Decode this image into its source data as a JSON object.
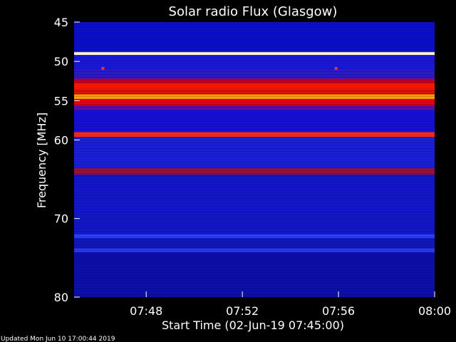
{
  "chart_data": {
    "type": "heatmap",
    "title": "Solar radio Flux (Glasgow)",
    "xlabel": "Start Time (02-Jun-19 07:45:00)",
    "ylabel": "Frequency [MHz]",
    "x_tick_labels": [
      "07:48",
      "07:52",
      "07:56",
      "08:00"
    ],
    "x_tick_minutes": [
      3,
      7,
      11,
      15
    ],
    "xlim_minutes": [
      0,
      15
    ],
    "y_ticks": [
      45,
      50,
      55,
      60,
      70,
      80
    ],
    "ylim": [
      45,
      80
    ],
    "bands": [
      {
        "f0": 45.0,
        "f1": 48.8,
        "color": "#0a10c8"
      },
      {
        "f0": 48.8,
        "f1": 49.2,
        "color": "#fff8d0"
      },
      {
        "f0": 49.2,
        "f1": 51.0,
        "color": "#1a18d8"
      },
      {
        "f0": 51.0,
        "f1": 52.2,
        "color": "#2a1ac8"
      },
      {
        "f0": 52.2,
        "f1": 52.8,
        "color": "#c80020"
      },
      {
        "f0": 52.8,
        "f1": 53.6,
        "color": "#ff1a00"
      },
      {
        "f0": 53.6,
        "f1": 54.2,
        "color": "#e01000"
      },
      {
        "f0": 54.2,
        "f1": 54.8,
        "color": "#ffa000"
      },
      {
        "f0": 54.8,
        "f1": 55.6,
        "color": "#e80010"
      },
      {
        "f0": 55.6,
        "f1": 56.2,
        "color": "#6010a0"
      },
      {
        "f0": 56.2,
        "f1": 59.0,
        "color": "#1410d8"
      },
      {
        "f0": 59.0,
        "f1": 59.6,
        "color": "#ff2a10"
      },
      {
        "f0": 59.6,
        "f1": 63.6,
        "color": "#1a20d8"
      },
      {
        "f0": 63.6,
        "f1": 64.4,
        "color": "#a0102e"
      },
      {
        "f0": 64.4,
        "f1": 72.0,
        "color": "#1218c8"
      },
      {
        "f0": 72.0,
        "f1": 72.5,
        "color": "#2a40ff"
      },
      {
        "f0": 72.5,
        "f1": 73.8,
        "color": "#1218b8"
      },
      {
        "f0": 73.8,
        "f1": 74.3,
        "color": "#2a38f0"
      },
      {
        "f0": 74.3,
        "f1": 80.0,
        "color": "#0c10a8"
      }
    ],
    "spots": [
      {
        "minute": 1.2,
        "freq": 50.9,
        "color": "#ff3020"
      },
      {
        "minute": 10.9,
        "freq": 50.9,
        "color": "#ff3020"
      }
    ],
    "colors": {
      "background": "#000000",
      "axis": "#ffffff",
      "low": "#0a10c8",
      "high": "#ff1a00"
    }
  },
  "footer": {
    "updated": "Updated Mon Jun 10 17:00:44 2019"
  }
}
